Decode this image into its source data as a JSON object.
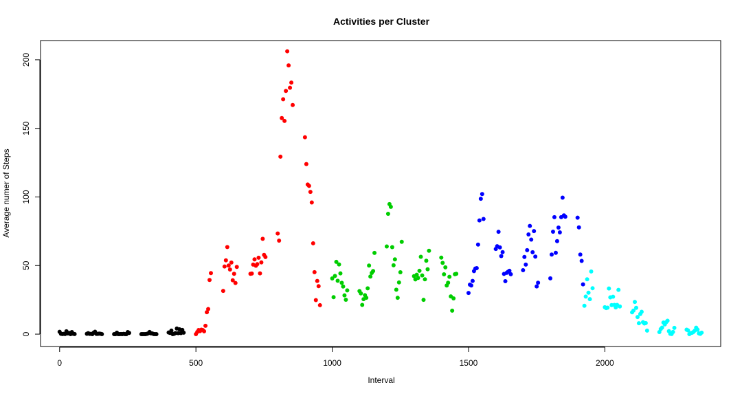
{
  "chart_data": {
    "type": "scatter",
    "title": "Activities per Cluster",
    "xlabel": "Interval",
    "ylabel": "Average numer of Steps",
    "xlim": [
      -70,
      2425
    ],
    "ylim": [
      -9,
      214
    ],
    "x_ticks": [
      "0",
      "500",
      "1000",
      "1500",
      "2000"
    ],
    "y_ticks": [
      "0",
      "50",
      "100",
      "150",
      "200"
    ],
    "grid": false,
    "series": [
      {
        "color": "#000000",
        "points": [
          [
            0,
            1.7
          ],
          [
            5,
            0.3
          ],
          [
            10,
            0.1
          ],
          [
            15,
            0.2
          ],
          [
            20,
            0.1
          ],
          [
            25,
            2.1
          ],
          [
            30,
            0.5
          ],
          [
            35,
            0.9
          ],
          [
            40,
            0.0
          ],
          [
            45,
            1.5
          ],
          [
            50,
            0.3
          ],
          [
            55,
            0.1
          ],
          [
            100,
            0.3
          ],
          [
            105,
            0.7
          ],
          [
            110,
            0.2
          ],
          [
            115,
            0.2
          ],
          [
            120,
            0.0
          ],
          [
            125,
            1.1
          ],
          [
            130,
            1.8
          ],
          [
            135,
            0.2
          ],
          [
            140,
            0.2
          ],
          [
            145,
            0.4
          ],
          [
            150,
            0.3
          ],
          [
            155,
            0.0
          ],
          [
            200,
            0.0
          ],
          [
            205,
            0.0
          ],
          [
            210,
            1.1
          ],
          [
            215,
            0.0
          ],
          [
            220,
            0.0
          ],
          [
            225,
            0.1
          ],
          [
            230,
            0.0
          ],
          [
            235,
            0.2
          ],
          [
            240,
            0.0
          ],
          [
            245,
            0.0
          ],
          [
            250,
            1.5
          ],
          [
            255,
            0.9
          ],
          [
            300,
            0.0
          ],
          [
            305,
            0.0
          ],
          [
            310,
            0.0
          ],
          [
            315,
            0.0
          ],
          [
            320,
            0.2
          ],
          [
            325,
            0.6
          ],
          [
            330,
            1.6
          ],
          [
            335,
            0.6
          ],
          [
            340,
            0.5
          ],
          [
            345,
            0.1
          ],
          [
            350,
            0.0
          ],
          [
            355,
            0.0
          ],
          [
            400,
            1.2
          ],
          [
            405,
            0.9
          ],
          [
            410,
            2.6
          ],
          [
            415,
            0.0
          ],
          [
            420,
            0.3
          ],
          [
            425,
            0.8
          ],
          [
            430,
            4.1
          ],
          [
            435,
            0.7
          ],
          [
            440,
            3.5
          ],
          [
            445,
            0.8
          ],
          [
            450,
            3.1
          ],
          [
            455,
            1.1
          ]
        ]
      },
      {
        "color": "#ff0000",
        "points": [
          [
            500,
            0.0
          ],
          [
            505,
            1.6
          ],
          [
            510,
            3.0
          ],
          [
            515,
            2.2
          ],
          [
            520,
            3.3
          ],
          [
            525,
            3.0
          ],
          [
            530,
            2.1
          ],
          [
            535,
            6.1
          ],
          [
            540,
            16.0
          ],
          [
            545,
            18.3
          ],
          [
            550,
            39.5
          ],
          [
            555,
            44.5
          ],
          [
            600,
            31.5
          ],
          [
            605,
            49.3
          ],
          [
            610,
            53.8
          ],
          [
            615,
            63.5
          ],
          [
            620,
            50.0
          ],
          [
            625,
            47.1
          ],
          [
            630,
            52.2
          ],
          [
            635,
            39.3
          ],
          [
            640,
            44.0
          ],
          [
            645,
            37.3
          ],
          [
            650,
            49.0
          ],
          [
            700,
            44.0
          ],
          [
            705,
            44.2
          ],
          [
            710,
            50.7
          ],
          [
            715,
            54.5
          ],
          [
            720,
            49.9
          ],
          [
            725,
            51.0
          ],
          [
            730,
            55.7
          ],
          [
            735,
            44.3
          ],
          [
            740,
            52.3
          ],
          [
            745,
            69.5
          ],
          [
            750,
            57.8
          ],
          [
            755,
            56.2
          ],
          [
            800,
            73.4
          ],
          [
            805,
            68.2
          ],
          [
            810,
            129.4
          ],
          [
            815,
            157.5
          ],
          [
            820,
            171.2
          ],
          [
            825,
            155.4
          ],
          [
            830,
            177.3
          ],
          [
            835,
            206.2
          ],
          [
            840,
            195.9
          ],
          [
            845,
            179.6
          ],
          [
            850,
            183.4
          ],
          [
            855,
            167.0
          ],
          [
            900,
            143.5
          ],
          [
            905,
            124.0
          ],
          [
            910,
            109.1
          ],
          [
            915,
            108.1
          ],
          [
            920,
            103.7
          ],
          [
            925,
            95.97
          ],
          [
            930,
            66.2
          ],
          [
            935,
            45.2
          ],
          [
            940,
            24.8
          ],
          [
            945,
            38.8
          ],
          [
            950,
            34.98
          ],
          [
            955,
            21.1
          ]
        ]
      },
      {
        "color": "#00cd00",
        "points": [
          [
            1000,
            40.6
          ],
          [
            1005,
            26.98
          ],
          [
            1010,
            42.4
          ],
          [
            1015,
            52.7
          ],
          [
            1020,
            38.9
          ],
          [
            1025,
            50.8
          ],
          [
            1030,
            44.3
          ],
          [
            1035,
            37.4
          ],
          [
            1040,
            34.7
          ],
          [
            1045,
            28.3
          ],
          [
            1050,
            25.1
          ],
          [
            1055,
            31.9
          ],
          [
            1100,
            31.4
          ],
          [
            1105,
            29.7
          ],
          [
            1110,
            21.3
          ],
          [
            1115,
            25.5
          ],
          [
            1120,
            28.4
          ],
          [
            1125,
            26.5
          ],
          [
            1130,
            33.4
          ],
          [
            1135,
            50.0
          ],
          [
            1140,
            42.0
          ],
          [
            1145,
            44.6
          ],
          [
            1150,
            46.0
          ],
          [
            1155,
            59.2
          ],
          [
            1200,
            63.9
          ],
          [
            1205,
            87.7
          ],
          [
            1210,
            94.8
          ],
          [
            1215,
            92.8
          ],
          [
            1220,
            63.4
          ],
          [
            1225,
            50.2
          ],
          [
            1230,
            54.5
          ],
          [
            1235,
            32.4
          ],
          [
            1240,
            26.5
          ],
          [
            1245,
            37.7
          ],
          [
            1250,
            45.1
          ],
          [
            1255,
            67.3
          ],
          [
            1300,
            42.3
          ],
          [
            1305,
            39.9
          ],
          [
            1310,
            43.3
          ],
          [
            1315,
            40.98
          ],
          [
            1320,
            46.2
          ],
          [
            1325,
            56.4
          ],
          [
            1330,
            42.8
          ],
          [
            1335,
            25.0
          ],
          [
            1340,
            39.97
          ],
          [
            1345,
            53.5
          ],
          [
            1350,
            47.3
          ],
          [
            1355,
            60.8
          ],
          [
            1400,
            55.8
          ],
          [
            1405,
            51.96
          ],
          [
            1410,
            43.6
          ],
          [
            1415,
            48.7
          ],
          [
            1420,
            35.5
          ],
          [
            1425,
            37.5
          ],
          [
            1430,
            41.8
          ],
          [
            1435,
            27.5
          ],
          [
            1440,
            17.1
          ],
          [
            1445,
            26.1
          ],
          [
            1450,
            43.7
          ],
          [
            1455,
            43.98
          ]
        ]
      },
      {
        "color": "#0000ff",
        "points": [
          [
            1500,
            30.0
          ],
          [
            1505,
            36.1
          ],
          [
            1510,
            35.5
          ],
          [
            1515,
            38.8
          ],
          [
            1520,
            45.96
          ],
          [
            1525,
            47.8
          ],
          [
            1530,
            48.1
          ],
          [
            1535,
            65.3
          ],
          [
            1540,
            82.9
          ],
          [
            1545,
            98.7
          ],
          [
            1550,
            102.1
          ],
          [
            1555,
            83.96
          ],
          [
            1600,
            62.1
          ],
          [
            1605,
            64.1
          ],
          [
            1610,
            74.6
          ],
          [
            1615,
            63.2
          ],
          [
            1620,
            56.9
          ],
          [
            1625,
            59.8
          ],
          [
            1630,
            43.9
          ],
          [
            1635,
            38.6
          ],
          [
            1640,
            44.7
          ],
          [
            1645,
            45.5
          ],
          [
            1650,
            46.2
          ],
          [
            1655,
            43.7
          ],
          [
            1700,
            46.6
          ],
          [
            1705,
            56.3
          ],
          [
            1710,
            50.7
          ],
          [
            1715,
            61.2
          ],
          [
            1720,
            72.7
          ],
          [
            1725,
            78.9
          ],
          [
            1730,
            68.9
          ],
          [
            1735,
            59.7
          ],
          [
            1740,
            75.1
          ],
          [
            1745,
            56.5
          ],
          [
            1750,
            34.8
          ],
          [
            1755,
            37.5
          ],
          [
            1800,
            40.7
          ],
          [
            1805,
            58.0
          ],
          [
            1810,
            74.7
          ],
          [
            1815,
            85.3
          ],
          [
            1820,
            59.3
          ],
          [
            1825,
            67.8
          ],
          [
            1830,
            77.7
          ],
          [
            1835,
            74.2
          ],
          [
            1840,
            85.3
          ],
          [
            1845,
            99.5
          ],
          [
            1850,
            86.6
          ],
          [
            1855,
            85.6
          ],
          [
            1900,
            84.9
          ],
          [
            1905,
            77.8
          ],
          [
            1910,
            58.0
          ],
          [
            1915,
            53.4
          ],
          [
            1920,
            36.3
          ]
        ]
      },
      {
        "color": "#00ffff",
        "points": [
          [
            1925,
            20.7
          ],
          [
            1930,
            27.4
          ],
          [
            1935,
            40.0
          ],
          [
            1940,
            30.2
          ],
          [
            1945,
            25.5
          ],
          [
            1950,
            45.7
          ],
          [
            1955,
            33.5
          ],
          [
            2000,
            19.6
          ],
          [
            2005,
            19.0
          ],
          [
            2010,
            19.3
          ],
          [
            2015,
            33.3
          ],
          [
            2020,
            26.8
          ],
          [
            2025,
            21.2
          ],
          [
            2030,
            27.3
          ],
          [
            2035,
            21.3
          ],
          [
            2040,
            19.5
          ],
          [
            2045,
            21.3
          ],
          [
            2050,
            32.3
          ],
          [
            2055,
            20.2
          ],
          [
            2100,
            15.9
          ],
          [
            2105,
            17.2
          ],
          [
            2110,
            23.5
          ],
          [
            2115,
            19.2
          ],
          [
            2120,
            12.5
          ],
          [
            2125,
            8.0
          ],
          [
            2130,
            14.7
          ],
          [
            2135,
            16.3
          ],
          [
            2140,
            8.7
          ],
          [
            2145,
            7.8
          ],
          [
            2150,
            8.1
          ],
          [
            2155,
            2.6
          ],
          [
            2200,
            1.5
          ],
          [
            2205,
            3.7
          ],
          [
            2210,
            4.8
          ],
          [
            2215,
            8.5
          ],
          [
            2220,
            7.1
          ],
          [
            2225,
            8.7
          ],
          [
            2230,
            9.8
          ],
          [
            2235,
            2.2
          ],
          [
            2240,
            0.3
          ],
          [
            2245,
            0.1
          ],
          [
            2250,
            1.6
          ],
          [
            2255,
            4.6
          ],
          [
            2300,
            3.3
          ],
          [
            2305,
            2.8
          ],
          [
            2310,
            0.0
          ],
          [
            2315,
            0.8
          ],
          [
            2320,
            1.0
          ],
          [
            2325,
            1.6
          ],
          [
            2330,
            2.6
          ],
          [
            2335,
            4.7
          ],
          [
            2340,
            3.3
          ],
          [
            2345,
            0.6
          ],
          [
            2350,
            0.2
          ],
          [
            2355,
            1.1
          ]
        ]
      }
    ]
  }
}
